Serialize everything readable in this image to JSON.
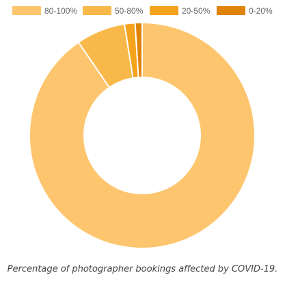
{
  "chart_data": {
    "type": "doughnut",
    "series": [
      {
        "name": "80-100%",
        "value": 90,
        "color": "#FDC66E"
      },
      {
        "name": "50-80%",
        "value": 7,
        "color": "#F9B94A"
      },
      {
        "name": "20-50%",
        "value": 1.5,
        "color": "#F5A31D"
      },
      {
        "name": "0-20%",
        "value": 1,
        "color": "#DF8309"
      }
    ],
    "legend_position": "top",
    "caption": "Percentage of photographer bookings affected by COVID-19."
  }
}
